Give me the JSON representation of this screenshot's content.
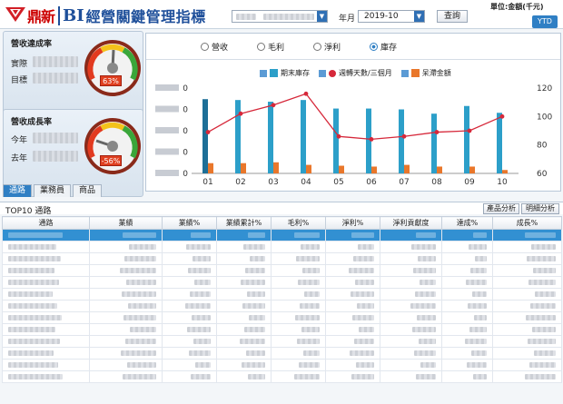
{
  "header": {
    "brand": "鼎新",
    "bi": "BI",
    "title": "經營關鍵管理指標",
    "year_month_label": "年月",
    "year_month_value": "2019-10",
    "query_button": "查詢",
    "unit_label": "單位:金額(千元)",
    "ytd_button": "YTD"
  },
  "kpi_revenue": {
    "title": "營收達成率",
    "row1_label": "實際",
    "row2_label": "目標",
    "gauge_value": "63%"
  },
  "kpi_growth": {
    "title": "營收成長率",
    "row1_label": "今年",
    "row2_label": "去年",
    "gauge_value": "-56%"
  },
  "left_tabs": [
    "通路",
    "業務員",
    "商品"
  ],
  "chart_options": [
    "營收",
    "毛利",
    "淨利",
    "庫存"
  ],
  "chart_selected": "庫存",
  "colors": {
    "accent": "#2f7fc4",
    "bar_primary": "#2c9fc9",
    "bar_secondary": "#e9772b",
    "line": "#d6283a",
    "gauge_badge": "#e04020"
  },
  "chart_data": {
    "type": "bar",
    "categories": [
      "01",
      "02",
      "03",
      "04",
      "05",
      "06",
      "07",
      "08",
      "09",
      "10"
    ],
    "series": [
      {
        "name": "期末庫存",
        "type": "bar",
        "axis": "left",
        "values": [
          87,
          86,
          84,
          86,
          76,
          76,
          75,
          70,
          79,
          71
        ]
      },
      {
        "name": "週轉天數/三個月",
        "type": "line",
        "axis": "right",
        "values": [
          89,
          102,
          108,
          116,
          86,
          84,
          86,
          89,
          90,
          100
        ]
      },
      {
        "name": "呆滯金額",
        "type": "bar",
        "axis": "left",
        "values": [
          12,
          12,
          13,
          10,
          9,
          8,
          10,
          8,
          8,
          4
        ]
      }
    ],
    "y_left_tick_labels": [
      "0",
      "0",
      "0",
      "0",
      "0"
    ],
    "y_right_ticks": [
      60,
      80,
      100,
      120
    ],
    "y_right_lim": [
      60,
      120
    ],
    "legend_position": "top"
  },
  "table": {
    "caption": "TOP10 通路",
    "buttons": [
      "產品分析",
      "明細分析"
    ],
    "columns": [
      "通路",
      "業績",
      "業績%",
      "業績累計%",
      "毛利%",
      "淨利%",
      "淨利貢獻度",
      "達成%",
      "成長%"
    ],
    "row_count": 13
  }
}
